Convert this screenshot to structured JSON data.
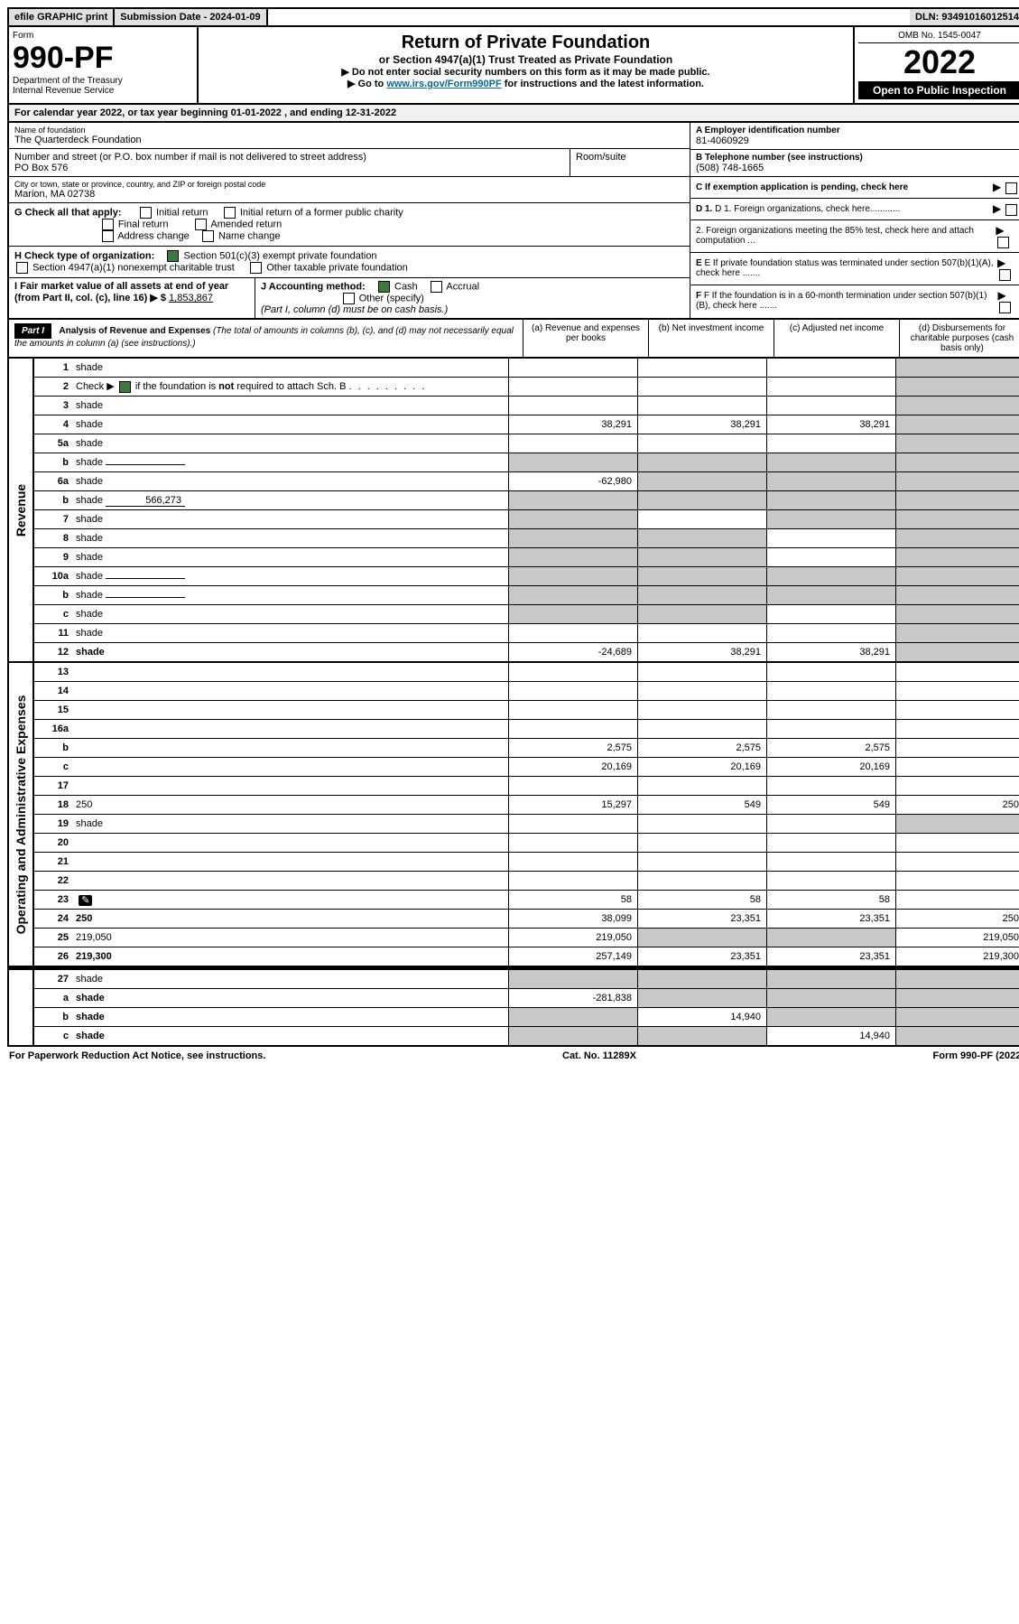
{
  "top": {
    "efile": "efile GRAPHIC print",
    "submission": "Submission Date - 2024-01-09",
    "dln": "DLN: 93491016012514"
  },
  "header": {
    "form_label": "Form",
    "form_num": "990-PF",
    "dept": "Department of the Treasury\nInternal Revenue Service",
    "title": "Return of Private Foundation",
    "subtitle": "or Section 4947(a)(1) Trust Treated as Private Foundation",
    "instr1": "▶ Do not enter social security numbers on this form as it may be made public.",
    "instr2_pre": "▶ Go to ",
    "instr2_link": "www.irs.gov/Form990PF",
    "instr2_post": " for instructions and the latest information.",
    "omb": "OMB No. 1545-0047",
    "year": "2022",
    "open": "Open to Public Inspection"
  },
  "cal": "For calendar year 2022, or tax year beginning 01-01-2022             , and ending 12-31-2022",
  "info": {
    "name_lbl": "Name of foundation",
    "name": "The Quarterdeck Foundation",
    "addr_lbl": "Number and street (or P.O. box number if mail is not delivered to street address)",
    "addr": "PO Box 576",
    "room_lbl": "Room/suite",
    "city_lbl": "City or town, state or province, country, and ZIP or foreign postal code",
    "city": "Marion, MA  02738",
    "a_lbl": "A Employer identification number",
    "a_val": "81-4060929",
    "b_lbl": "B Telephone number (see instructions)",
    "b_val": "(508) 748-1665",
    "c_lbl": "C If exemption application is pending, check here",
    "d1": "D 1. Foreign organizations, check here............",
    "d2": "2. Foreign organizations meeting the 85% test, check here and attach computation ...",
    "e": "E  If private foundation status was terminated under section 507(b)(1)(A), check here .......",
    "f": "F  If the foundation is in a 60-month termination under section 507(b)(1)(B), check here .......",
    "g_lbl": "G Check all that apply:",
    "g_opts": [
      "Initial return",
      "Initial return of a former public charity",
      "Final return",
      "Amended return",
      "Address change",
      "Name change"
    ],
    "h_lbl": "H Check type of organization:",
    "h_opts": [
      "Section 501(c)(3) exempt private foundation",
      "Section 4947(a)(1) nonexempt charitable trust",
      "Other taxable private foundation"
    ],
    "i_lbl": "I Fair market value of all assets at end of year (from Part II, col. (c), line 16) ▶ $",
    "i_val": "1,853,867",
    "j_lbl": "J Accounting method:",
    "j_cash": "Cash",
    "j_accrual": "Accrual",
    "j_other": "Other (specify)",
    "j_note": "(Part I, column (d) must be on cash basis.)"
  },
  "part1": {
    "hdr": "Part I",
    "title": "Analysis of Revenue and Expenses",
    "note": "(The total of amounts in columns (b), (c), and (d) may not necessarily equal the amounts in column (a) (see instructions).)",
    "cols": {
      "a": "(a)  Revenue and expenses per books",
      "b": "(b)  Net investment income",
      "c": "(c)  Adjusted net income",
      "d": "(d)  Disbursements for charitable purposes (cash basis only)"
    }
  },
  "side": {
    "rev": "Revenue",
    "exp": "Operating and Administrative Expenses"
  },
  "rows": [
    {
      "n": "1",
      "d": "shade",
      "a": "",
      "b": "",
      "c": ""
    },
    {
      "n": "2",
      "d": "shade",
      "a": "",
      "b": "",
      "c": "",
      "checked": true
    },
    {
      "n": "3",
      "d": "shade",
      "a": "",
      "b": "",
      "c": ""
    },
    {
      "n": "4",
      "d": "shade",
      "a": "38,291",
      "b": "38,291",
      "c": "38,291"
    },
    {
      "n": "5a",
      "d": "shade",
      "a": "",
      "b": "",
      "c": ""
    },
    {
      "n": "b",
      "d": "shade",
      "a": "shade",
      "b": "shade",
      "c": "shade",
      "inline": ""
    },
    {
      "n": "6a",
      "d": "shade",
      "a": "-62,980",
      "b": "shade",
      "c": "shade"
    },
    {
      "n": "b",
      "d": "shade",
      "a": "shade",
      "b": "shade",
      "c": "shade",
      "inline": "566,273"
    },
    {
      "n": "7",
      "d": "shade",
      "a": "shade",
      "b": "",
      "c": "shade"
    },
    {
      "n": "8",
      "d": "shade",
      "a": "shade",
      "b": "shade",
      "c": ""
    },
    {
      "n": "9",
      "d": "shade",
      "a": "shade",
      "b": "shade",
      "c": ""
    },
    {
      "n": "10a",
      "d": "shade",
      "a": "shade",
      "b": "shade",
      "c": "shade",
      "inline": ""
    },
    {
      "n": "b",
      "d": "shade",
      "a": "shade",
      "b": "shade",
      "c": "shade",
      "inline": ""
    },
    {
      "n": "c",
      "d": "shade",
      "a": "shade",
      "b": "shade",
      "c": ""
    },
    {
      "n": "11",
      "d": "shade",
      "a": "",
      "b": "",
      "c": ""
    },
    {
      "n": "12",
      "d": "shade",
      "a": "-24,689",
      "b": "38,291",
      "c": "38,291",
      "bold": true
    }
  ],
  "exp_rows": [
    {
      "n": "13",
      "d": "",
      "a": "",
      "b": "",
      "c": ""
    },
    {
      "n": "14",
      "d": "",
      "a": "",
      "b": "",
      "c": ""
    },
    {
      "n": "15",
      "d": "",
      "a": "",
      "b": "",
      "c": ""
    },
    {
      "n": "16a",
      "d": "",
      "a": "",
      "b": "",
      "c": ""
    },
    {
      "n": "b",
      "d": "",
      "a": "2,575",
      "b": "2,575",
      "c": "2,575"
    },
    {
      "n": "c",
      "d": "",
      "a": "20,169",
      "b": "20,169",
      "c": "20,169"
    },
    {
      "n": "17",
      "d": "",
      "a": "",
      "b": "",
      "c": ""
    },
    {
      "n": "18",
      "d": "250",
      "a": "15,297",
      "b": "549",
      "c": "549"
    },
    {
      "n": "19",
      "d": "shade",
      "a": "",
      "b": "",
      "c": ""
    },
    {
      "n": "20",
      "d": "",
      "a": "",
      "b": "",
      "c": ""
    },
    {
      "n": "21",
      "d": "",
      "a": "",
      "b": "",
      "c": ""
    },
    {
      "n": "22",
      "d": "",
      "a": "",
      "b": "",
      "c": ""
    },
    {
      "n": "23",
      "d": "",
      "a": "58",
      "b": "58",
      "c": "58",
      "icon": true
    },
    {
      "n": "24",
      "d": "250",
      "a": "38,099",
      "b": "23,351",
      "c": "23,351",
      "bold": true
    },
    {
      "n": "25",
      "d": "219,050",
      "a": "219,050",
      "b": "shade",
      "c": "shade"
    },
    {
      "n": "26",
      "d": "219,300",
      "a": "257,149",
      "b": "23,351",
      "c": "23,351",
      "bold": true
    }
  ],
  "net_rows": [
    {
      "n": "27",
      "d": "shade",
      "a": "shade",
      "b": "shade",
      "c": "shade"
    },
    {
      "n": "a",
      "d": "shade",
      "a": "-281,838",
      "b": "shade",
      "c": "shade",
      "bold": true
    },
    {
      "n": "b",
      "d": "shade",
      "a": "shade",
      "b": "14,940",
      "c": "shade",
      "bold": true
    },
    {
      "n": "c",
      "d": "shade",
      "a": "shade",
      "b": "shade",
      "c": "14,940",
      "bold": true
    }
  ],
  "footer": {
    "left": "For Paperwork Reduction Act Notice, see instructions.",
    "center": "Cat. No. 11289X",
    "right": "Form 990-PF (2022)"
  }
}
